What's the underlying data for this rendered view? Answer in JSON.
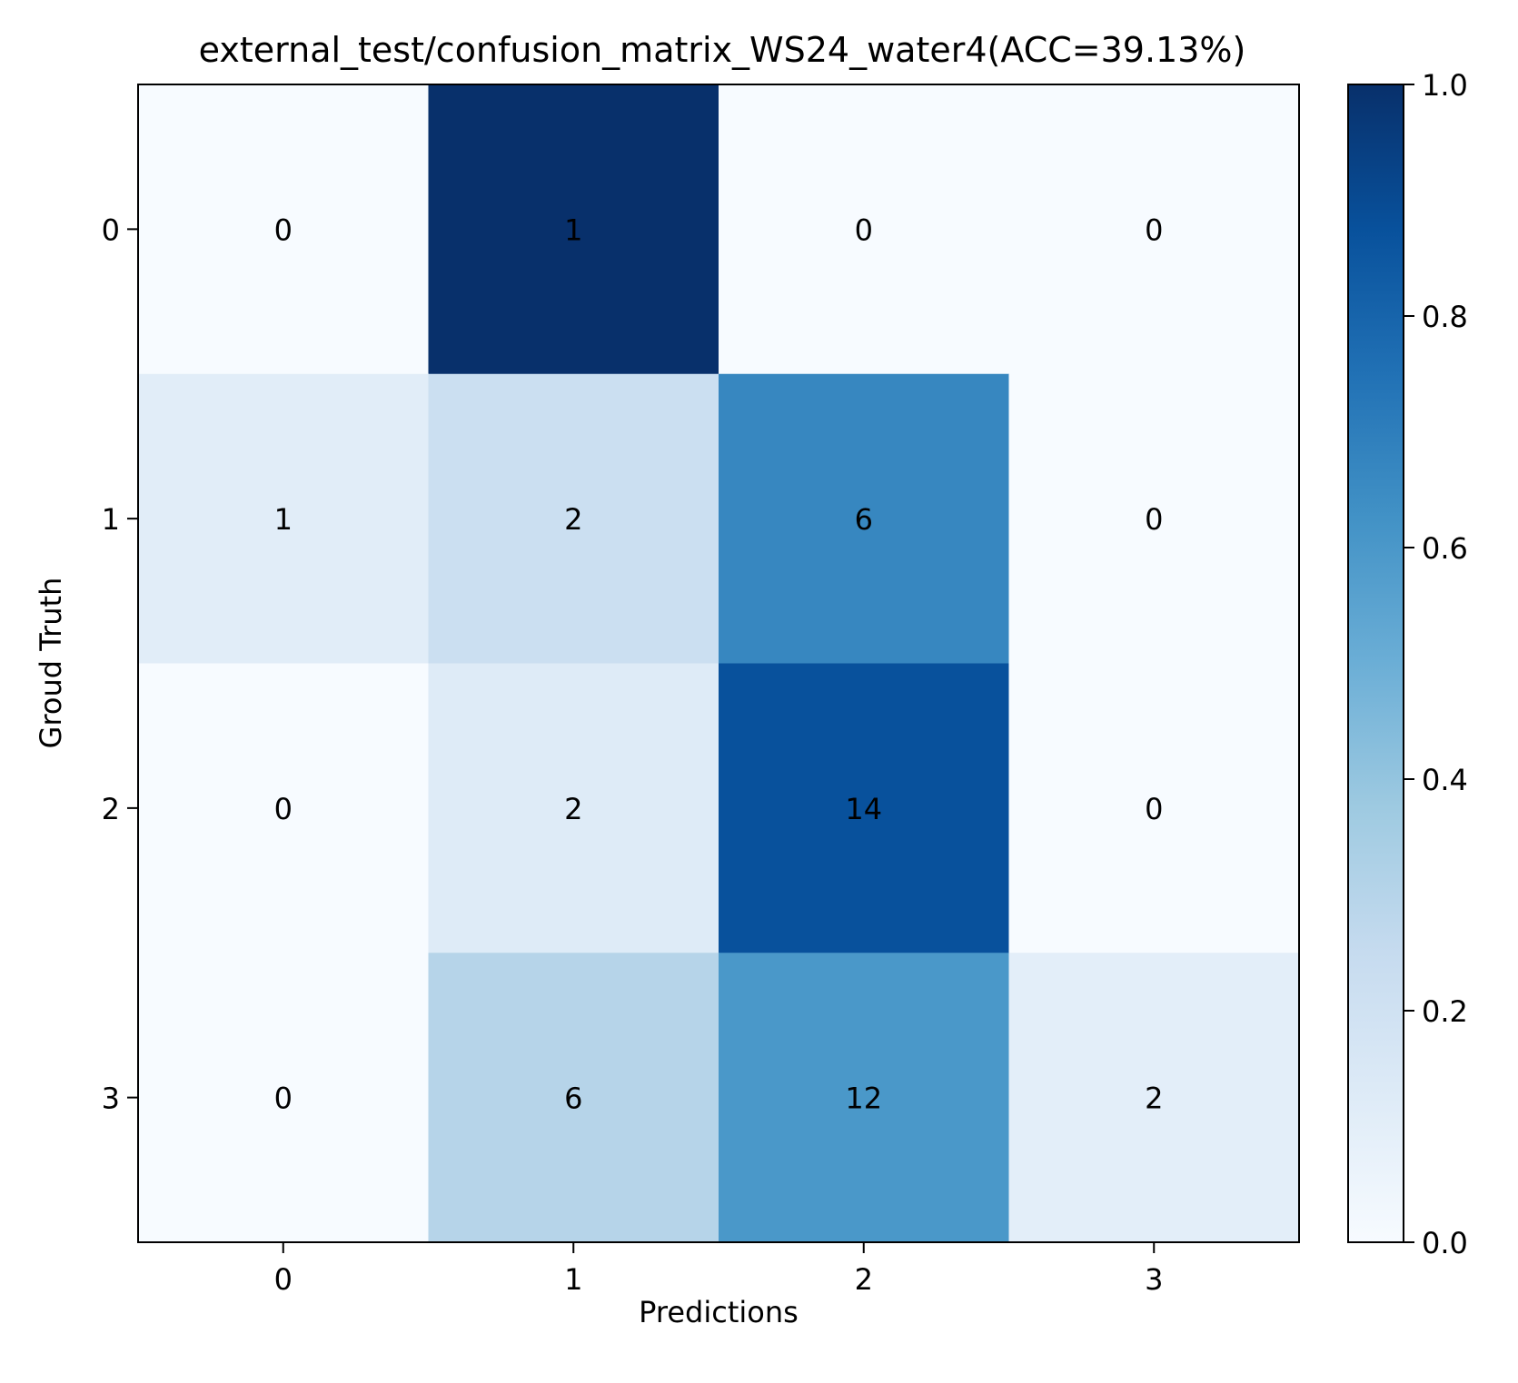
{
  "chart_data": {
    "type": "heatmap",
    "title": "external_test/confusion_matrix_WS24_water4(ACC=39.13%)",
    "xlabel": "Predictions",
    "ylabel": "Groud Truth",
    "x_categories": [
      "0",
      "1",
      "2",
      "3"
    ],
    "y_categories": [
      "0",
      "1",
      "2",
      "3"
    ],
    "counts": [
      [
        0,
        1,
        0,
        0
      ],
      [
        1,
        2,
        6,
        0
      ],
      [
        0,
        2,
        14,
        0
      ],
      [
        0,
        6,
        12,
        2
      ]
    ],
    "row_normalized": [
      [
        0.0,
        1.0,
        0.0,
        0.0
      ],
      [
        0.111,
        0.222,
        0.667,
        0.0
      ],
      [
        0.0,
        0.125,
        0.875,
        0.0
      ],
      [
        0.0,
        0.3,
        0.6,
        0.1
      ]
    ],
    "colormap": "Blues",
    "colorbar": {
      "range": [
        0.0,
        1.0
      ],
      "ticks": [
        "0.0",
        "0.2",
        "0.4",
        "0.6",
        "0.8",
        "1.0"
      ]
    },
    "grid": false
  }
}
